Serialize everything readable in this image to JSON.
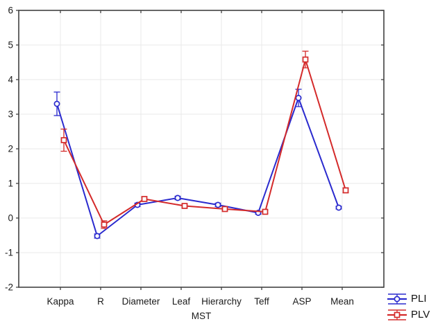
{
  "chart_data": {
    "type": "line",
    "title": "",
    "xlabel": "MST",
    "ylabel": "",
    "ylim": [
      -2,
      6
    ],
    "yticks": [
      6,
      5,
      4,
      3,
      2,
      1,
      0,
      -1,
      -2
    ],
    "grid": true,
    "legend_position": "bottom-right",
    "categories": [
      "Kappa",
      "R",
      "Diameter",
      "Leaf",
      "Hierarchy",
      "Teff",
      "ASP",
      "Mean"
    ],
    "series": [
      {
        "name": "PLI",
        "color": "#2a2ace",
        "marker": "circle",
        "values": [
          3.3,
          -0.52,
          0.38,
          0.58,
          0.38,
          0.15,
          3.47,
          0.3
        ],
        "errors": [
          0.34,
          0.06,
          0.05,
          0.05,
          0.05,
          0.04,
          0.25,
          0.04
        ]
      },
      {
        "name": "PLV",
        "color": "#d42a2a",
        "marker": "square",
        "values": [
          2.25,
          -0.19,
          0.55,
          0.35,
          0.26,
          0.18,
          4.58,
          0.8
        ],
        "errors": [
          0.32,
          0.11,
          0.06,
          0.05,
          0.05,
          0.04,
          0.24,
          0.07
        ]
      }
    ],
    "colors": {
      "frame": "#414141",
      "grid": "#e8e8e8",
      "text": "#1a1a1a",
      "background": "#ffffff"
    }
  }
}
